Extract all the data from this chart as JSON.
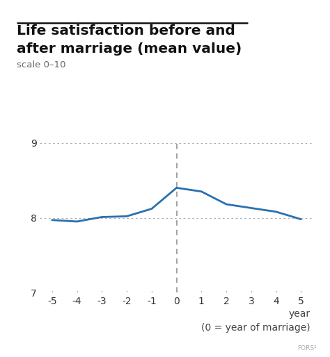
{
  "title_line1": "Life satisfaction before and",
  "title_line2": "after marriage (mean value)",
  "scale_label": "scale 0–10",
  "xlabel_line1": "year",
  "xlabel_line2": "(0 = year of marriage)",
  "watermark": "FORS²",
  "x": [
    -5,
    -4,
    -3,
    -2,
    -1,
    0,
    1,
    2,
    3,
    4,
    5
  ],
  "y": [
    7.97,
    7.95,
    8.01,
    8.02,
    8.12,
    8.4,
    8.35,
    8.18,
    8.13,
    8.08,
    7.98
  ],
  "line_color": "#2970b0",
  "line_width": 2.0,
  "ylim": [
    7.0,
    9.0
  ],
  "yticks": [
    7,
    8,
    9
  ],
  "xlim": [
    -5.5,
    5.5
  ],
  "xticks": [
    -5,
    -4,
    -3,
    -2,
    -1,
    0,
    1,
    2,
    3,
    4,
    5
  ],
  "xtick_labels": [
    "-5",
    "-4",
    "-3",
    "-2",
    "-1",
    "0",
    "1",
    "2",
    "3",
    "4",
    "5"
  ],
  "grid_color": "#aaaaaa",
  "vline_color": "#888888",
  "bg_color": "#ffffff",
  "title_fontsize": 14.5,
  "scale_fontsize": 9.5,
  "tick_fontsize": 10,
  "xlabel_fontsize": 10,
  "topbar_color": "#111111",
  "text_color": "#111111",
  "axis_text_color": "#555555",
  "watermark_color": "#aaaaaa"
}
